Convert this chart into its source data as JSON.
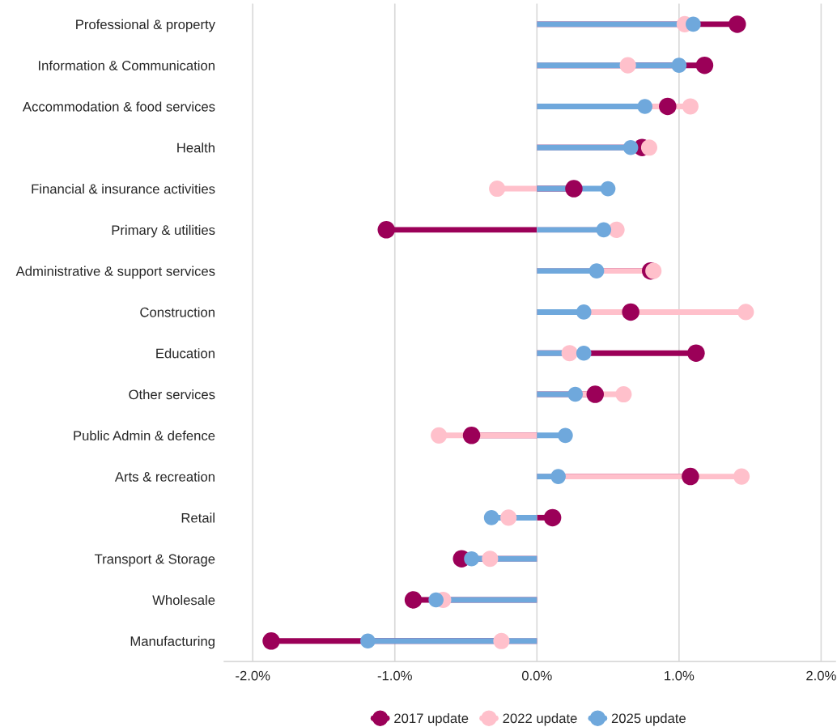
{
  "chart_data": {
    "type": "lollipop",
    "orientation": "horizontal",
    "categories": [
      "Professional & property",
      "Information & Communication",
      "Accommodation & food services",
      "Health",
      "Financial & insurance activities",
      "Primary & utilities",
      "Administrative & support services",
      "Construction",
      "Education",
      "Other services",
      "Public Admin & defence",
      "Arts & recreation",
      "Retail",
      "Transport & Storage",
      "Wholesale",
      "Manufacturing"
    ],
    "series": [
      {
        "name": "2017 update",
        "color": "#9b0058",
        "values": [
          1.41,
          1.18,
          0.92,
          0.74,
          0.26,
          -1.06,
          0.8,
          0.66,
          1.12,
          0.41,
          -0.46,
          1.08,
          0.11,
          -0.53,
          -0.87,
          -1.87
        ]
      },
      {
        "name": "2022 update",
        "color": "#ffc0cb",
        "values": [
          1.04,
          0.64,
          1.08,
          0.79,
          -0.28,
          0.56,
          0.82,
          1.47,
          0.23,
          0.61,
          -0.69,
          1.44,
          -0.2,
          -0.33,
          -0.66,
          -0.25
        ]
      },
      {
        "name": "2025 update",
        "color": "#6fa8dc",
        "values": [
          1.1,
          1.0,
          0.76,
          0.66,
          0.5,
          0.47,
          0.42,
          0.33,
          0.33,
          0.27,
          0.2,
          0.15,
          -0.32,
          -0.46,
          -0.71,
          -1.19
        ]
      }
    ],
    "xlim": [
      -2.2,
      2.1
    ],
    "xticks": [
      {
        "value": -2,
        "label": "-2.0%"
      },
      {
        "value": -1,
        "label": "-1.0%"
      },
      {
        "value": 0,
        "label": "0.0%"
      },
      {
        "value": 1,
        "label": "1.0%"
      },
      {
        "value": 2,
        "label": "2.0%"
      }
    ],
    "grid": "x",
    "legend": "bottom",
    "marker": "circle",
    "line_style": "solid"
  }
}
